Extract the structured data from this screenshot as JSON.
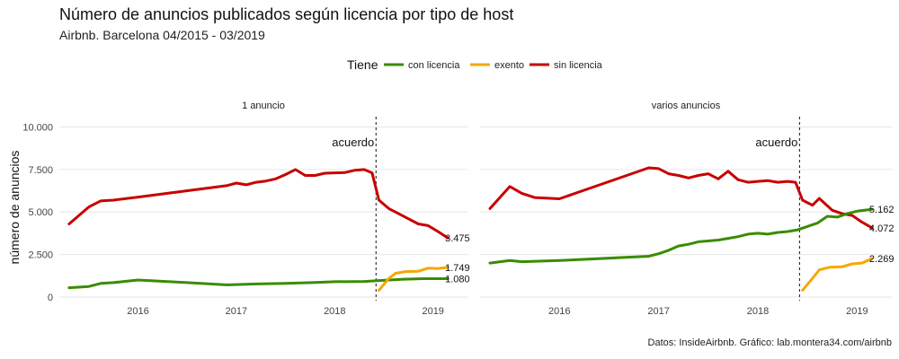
{
  "title": "Número de anuncios publicados según licencia por tipo de host",
  "subtitle": "Airbnb. Barcelona 04/2015 - 03/2019",
  "caption": "Datos: InsideAirbnb. Gráfico: lab.montera34.com/airbnb",
  "legend": {
    "title": "Tiene",
    "items": [
      {
        "label": "con licencia",
        "color": "#3a8c00"
      },
      {
        "label": "exento",
        "color": "#f5a800"
      },
      {
        "label": "sin licencia",
        "color": "#c80000"
      }
    ]
  },
  "chart_data": {
    "type": "line",
    "ylabel": "número de anuncios",
    "xlabel": "",
    "ylim": [
      0,
      10500
    ],
    "yticks": [
      0,
      2500,
      5000,
      7500,
      10000
    ],
    "ytick_labels": [
      "0",
      "2.500",
      "5.000",
      "7.500",
      "10.000"
    ],
    "xlim": [
      2015.2,
      2019.35
    ],
    "xticks": [
      2016,
      2017,
      2018,
      2019
    ],
    "xtick_labels": [
      "2016",
      "2017",
      "2018",
      "2019"
    ],
    "grid": true,
    "legend_position": "top",
    "vline": {
      "x": 2018.42,
      "label": "acuerdo",
      "style": "dashed"
    },
    "panels": [
      {
        "title": "1 anuncio",
        "series": [
          {
            "name": "sin licencia",
            "color": "#c80000",
            "points": [
              [
                2015.3,
                4300
              ],
              [
                2015.5,
                5300
              ],
              [
                2015.62,
                5650
              ],
              [
                2015.75,
                5700
              ],
              [
                2016.0,
                5880
              ],
              [
                2016.9,
                6550
              ],
              [
                2017.0,
                6700
              ],
              [
                2017.1,
                6600
              ],
              [
                2017.2,
                6750
              ],
              [
                2017.3,
                6820
              ],
              [
                2017.4,
                6950
              ],
              [
                2017.5,
                7200
              ],
              [
                2017.6,
                7500
              ],
              [
                2017.7,
                7150
              ],
              [
                2017.8,
                7150
              ],
              [
                2017.9,
                7280
              ],
              [
                2018.0,
                7300
              ],
              [
                2018.1,
                7320
              ],
              [
                2018.2,
                7450
              ],
              [
                2018.3,
                7500
              ],
              [
                2018.38,
                7300
              ],
              [
                2018.45,
                5700
              ],
              [
                2018.55,
                5200
              ],
              [
                2018.65,
                4900
              ],
              [
                2018.75,
                4600
              ],
              [
                2018.85,
                4300
              ],
              [
                2018.95,
                4200
              ],
              [
                2019.05,
                3850
              ],
              [
                2019.15,
                3475
              ]
            ]
          },
          {
            "name": "con licencia",
            "color": "#3a8c00",
            "points": [
              [
                2015.3,
                550
              ],
              [
                2015.5,
                620
              ],
              [
                2015.62,
                800
              ],
              [
                2015.75,
                850
              ],
              [
                2016.0,
                1000
              ],
              [
                2016.5,
                850
              ],
              [
                2016.9,
                720
              ],
              [
                2017.2,
                770
              ],
              [
                2017.5,
                800
              ],
              [
                2017.8,
                860
              ],
              [
                2018.0,
                900
              ],
              [
                2018.3,
                920
              ],
              [
                2018.45,
                970
              ],
              [
                2018.7,
                1050
              ],
              [
                2018.9,
                1080
              ],
              [
                2019.05,
                1080
              ],
              [
                2019.15,
                1080
              ]
            ]
          },
          {
            "name": "exento",
            "color": "#f5a800",
            "points": [
              [
                2018.45,
                400
              ],
              [
                2018.55,
                1100
              ],
              [
                2018.62,
                1400
              ],
              [
                2018.72,
                1500
              ],
              [
                2018.85,
                1520
              ],
              [
                2018.95,
                1700
              ],
              [
                2019.05,
                1680
              ],
              [
                2019.15,
                1749
              ]
            ]
          }
        ],
        "labels": [
          {
            "text": "3.475",
            "x": 2019.15,
            "y": 3475
          },
          {
            "text": "1.749",
            "x": 2019.15,
            "y": 1749
          },
          {
            "text": "1.080",
            "x": 2019.15,
            "y": 1080
          }
        ]
      },
      {
        "title": "varios anuncios",
        "series": [
          {
            "name": "sin licencia",
            "color": "#c80000",
            "points": [
              [
                2015.3,
                5200
              ],
              [
                2015.5,
                6500
              ],
              [
                2015.62,
                6100
              ],
              [
                2015.75,
                5850
              ],
              [
                2016.0,
                5780
              ],
              [
                2016.9,
                7600
              ],
              [
                2017.0,
                7550
              ],
              [
                2017.1,
                7250
              ],
              [
                2017.2,
                7150
              ],
              [
                2017.3,
                7000
              ],
              [
                2017.4,
                7150
              ],
              [
                2017.5,
                7250
              ],
              [
                2017.6,
                6950
              ],
              [
                2017.7,
                7400
              ],
              [
                2017.8,
                6900
              ],
              [
                2017.9,
                6750
              ],
              [
                2018.0,
                6800
              ],
              [
                2018.1,
                6850
              ],
              [
                2018.2,
                6750
              ],
              [
                2018.3,
                6800
              ],
              [
                2018.38,
                6750
              ],
              [
                2018.45,
                5700
              ],
              [
                2018.55,
                5400
              ],
              [
                2018.62,
                5800
              ],
              [
                2018.75,
                5100
              ],
              [
                2018.85,
                4900
              ],
              [
                2018.95,
                4800
              ],
              [
                2019.05,
                4400
              ],
              [
                2019.15,
                4072
              ]
            ]
          },
          {
            "name": "con licencia",
            "color": "#3a8c00",
            "points": [
              [
                2015.3,
                2000
              ],
              [
                2015.5,
                2150
              ],
              [
                2015.62,
                2080
              ],
              [
                2016.0,
                2150
              ],
              [
                2016.9,
                2400
              ],
              [
                2017.0,
                2550
              ],
              [
                2017.1,
                2750
              ],
              [
                2017.2,
                3000
              ],
              [
                2017.3,
                3100
              ],
              [
                2017.4,
                3250
              ],
              [
                2017.6,
                3350
              ],
              [
                2017.7,
                3450
              ],
              [
                2017.8,
                3550
              ],
              [
                2017.9,
                3700
              ],
              [
                2018.0,
                3750
              ],
              [
                2018.1,
                3700
              ],
              [
                2018.2,
                3800
              ],
              [
                2018.3,
                3850
              ],
              [
                2018.4,
                3950
              ],
              [
                2018.5,
                4150
              ],
              [
                2018.6,
                4350
              ],
              [
                2018.7,
                4750
              ],
              [
                2018.8,
                4700
              ],
              [
                2018.9,
                4900
              ],
              [
                2019.0,
                5050
              ],
              [
                2019.15,
                5162
              ]
            ]
          },
          {
            "name": "exento",
            "color": "#f5a800",
            "points": [
              [
                2018.45,
                400
              ],
              [
                2018.55,
                1100
              ],
              [
                2018.62,
                1600
              ],
              [
                2018.72,
                1750
              ],
              [
                2018.85,
                1780
              ],
              [
                2018.95,
                1950
              ],
              [
                2019.05,
                2000
              ],
              [
                2019.15,
                2269
              ]
            ]
          }
        ],
        "labels": [
          {
            "text": "5.162",
            "x": 2019.15,
            "y": 5162
          },
          {
            "text": "4.072",
            "x": 2019.15,
            "y": 4072
          },
          {
            "text": "2.269",
            "x": 2019.15,
            "y": 2269
          }
        ]
      }
    ]
  }
}
